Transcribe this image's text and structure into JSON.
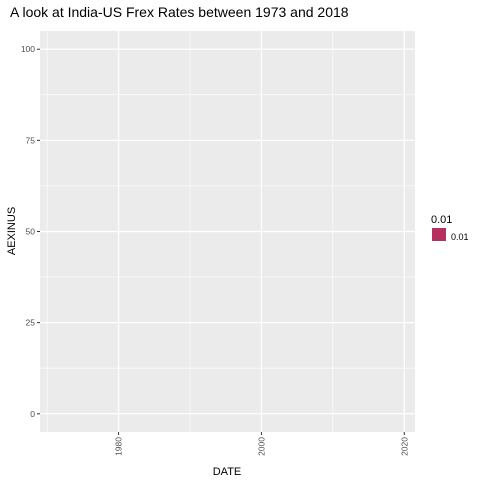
{
  "chart_data": {
    "type": "bar",
    "title": "A look at India-US Frex Rates between 1973 and 2018",
    "xlabel": "DATE",
    "ylabel": "AEXINUS",
    "x_ticks": [
      1980,
      2000,
      2020
    ],
    "x_tick_labels": [
      "1980",
      "2000",
      "2020"
    ],
    "y_ticks": [
      0,
      25,
      50,
      75,
      100
    ],
    "y_tick_labels": [
      "0",
      "25",
      "50",
      "75",
      "100"
    ],
    "xlim": [
      1969,
      2021.5
    ],
    "ylim": [
      -5,
      105
    ],
    "grid": true,
    "legend": {
      "title": "0.01",
      "placement": "right",
      "entries": [
        {
          "label": "0.01",
          "color": "#b5305f"
        }
      ]
    },
    "series": [
      {
        "x": [],
        "values": []
      }
    ]
  },
  "colors": {
    "panel_background": "#ebebeb",
    "grid_major": "#ffffff",
    "tick": "#333333",
    "fill": "#b5305f"
  }
}
